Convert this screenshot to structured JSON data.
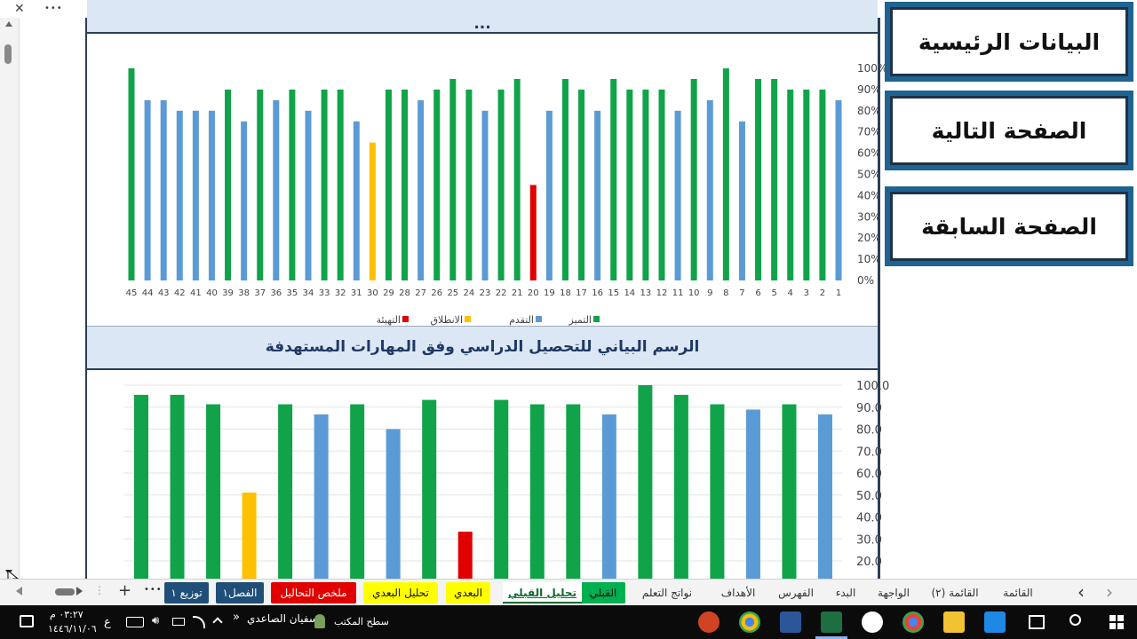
{
  "window": {
    "close_glyph": "✕",
    "more_glyph": "•••"
  },
  "colors": {
    "excellent": "#10a34a",
    "progress": "#5b9bd5",
    "launch": "#ffc000",
    "prep": "#e00000",
    "panel_border": "#2a3f56",
    "nav_button": "#1f6391"
  },
  "nav_buttons": {
    "main_data": "البيانات الرئيسية",
    "next_page": "الصفحة التالية",
    "prev_page": "الصفحة السابقة"
  },
  "chart1_title_partial": "...",
  "chart2_title": "الرسم البياني للتحصيل الدراسي وفق المهارات المستهدفة",
  "chart_data": [
    {
      "type": "bar",
      "x_direction": "right-to-left",
      "categories": [
        "1",
        "2",
        "3",
        "4",
        "5",
        "6",
        "7",
        "8",
        "9",
        "10",
        "11",
        "12",
        "13",
        "14",
        "15",
        "16",
        "17",
        "18",
        "19",
        "20",
        "21",
        "22",
        "23",
        "24",
        "25",
        "26",
        "27",
        "28",
        "29",
        "30",
        "31",
        "32",
        "33",
        "34",
        "35",
        "36",
        "37",
        "38",
        "39",
        "40",
        "41",
        "42",
        "43",
        "44",
        "45"
      ],
      "values": [
        85,
        90,
        90,
        90,
        95,
        95,
        75,
        100,
        85,
        95,
        80,
        90,
        90,
        90,
        95,
        80,
        90,
        95,
        80,
        45,
        95,
        90,
        80,
        90,
        95,
        90,
        85,
        90,
        90,
        65,
        75,
        90,
        90,
        80,
        90,
        85,
        90,
        75,
        90,
        80,
        80,
        80,
        85,
        85,
        100
      ],
      "levels": [
        "p",
        "e",
        "e",
        "e",
        "e",
        "e",
        "p",
        "e",
        "p",
        "e",
        "p",
        "e",
        "e",
        "e",
        "e",
        "p",
        "e",
        "e",
        "p",
        "r",
        "e",
        "e",
        "p",
        "e",
        "e",
        "e",
        "p",
        "e",
        "e",
        "l",
        "p",
        "e",
        "e",
        "p",
        "e",
        "p",
        "e",
        "p",
        "e",
        "p",
        "p",
        "p",
        "p",
        "p",
        "e"
      ],
      "ytick_labels": [
        "0%",
        "10%",
        "20%",
        "30%",
        "40%",
        "50%",
        "60%",
        "70%",
        "80%",
        "90%",
        "100%"
      ],
      "ylim": [
        0,
        100
      ],
      "legend": [
        {
          "key": "e",
          "name": "التميز"
        },
        {
          "key": "p",
          "name": "التقدم"
        },
        {
          "key": "l",
          "name": "الانطلاق"
        },
        {
          "key": "r",
          "name": "التهيئة"
        }
      ],
      "grid": false,
      "legend_position": "bottom"
    },
    {
      "type": "bar",
      "x_direction": "right-to-left",
      "values": [
        86.7,
        91.3,
        88.9,
        91.3,
        95.6,
        100,
        86.7,
        91.3,
        91.3,
        93.3,
        33.3,
        93.3,
        80,
        91.3,
        86.7,
        91.3,
        51.1,
        91.3,
        95.6,
        95.6
      ],
      "levels": [
        "p",
        "e",
        "p",
        "e",
        "e",
        "e",
        "p",
        "e",
        "e",
        "e",
        "r",
        "e",
        "p",
        "e",
        "p",
        "e",
        "l",
        "e",
        "e",
        "e"
      ],
      "ytick_labels": [
        "20.0",
        "30.0",
        "40.0",
        "50.0",
        "60.0",
        "70.0",
        "80.0",
        "90.0",
        "100.0"
      ],
      "ylim_visible": [
        16,
        100
      ],
      "grid": true
    }
  ],
  "sheet_tabs": [
    {
      "label": "القائمة",
      "style": "plain"
    },
    {
      "label": "(٢) القائمة",
      "style": "plain"
    },
    {
      "label": "الواجهة",
      "style": "plain"
    },
    {
      "label": "البدء",
      "style": "plain"
    },
    {
      "label": "الفهرس",
      "style": "plain"
    },
    {
      "label": "الأهداف",
      "style": "plain"
    },
    {
      "label": "نواتج التعلم",
      "style": "plain"
    },
    {
      "label": "القبلي",
      "style": "green"
    },
    {
      "label": "تحليل القبلي",
      "style": "active"
    },
    {
      "label": "البعدي",
      "style": "yellow"
    },
    {
      "label": "تحليل البعدي",
      "style": "yellow"
    },
    {
      "label": "ملخص التحاليل",
      "style": "red"
    },
    {
      "label": "الفصل١",
      "style": "blue"
    },
    {
      "label": "توزيع ١",
      "style": "blue"
    }
  ],
  "tabbar_controls": {
    "more": "•••",
    "add": "+",
    "prev": "‹",
    "next": "›"
  },
  "taskbar": {
    "time": "٠٣:٢٧ م",
    "date": "١٤٤٦/١١/٠٦",
    "lang": "ع",
    "user": "سفيان الصاعدي",
    "desktop": "سطح المكتب"
  }
}
